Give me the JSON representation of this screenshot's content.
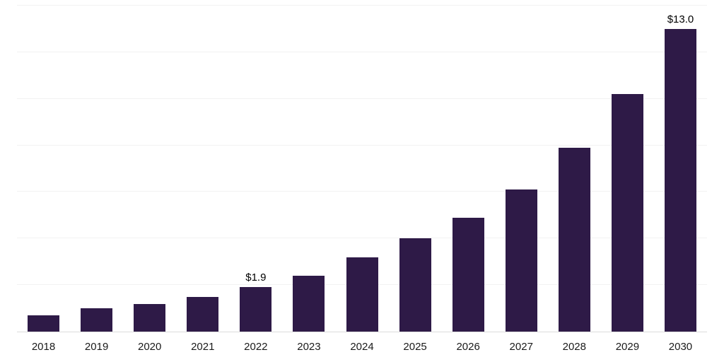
{
  "chart_data": {
    "type": "bar",
    "title": "",
    "xlabel": "",
    "ylabel": "",
    "categories": [
      "2018",
      "2019",
      "2020",
      "2021",
      "2022",
      "2023",
      "2024",
      "2025",
      "2026",
      "2027",
      "2028",
      "2029",
      "2030"
    ],
    "values": [
      0.7,
      1.0,
      1.2,
      1.5,
      1.9,
      2.4,
      3.2,
      4.0,
      4.9,
      6.1,
      7.9,
      10.2,
      13.0
    ],
    "data_labels": [
      "",
      "",
      "",
      "",
      "$1.9",
      "",
      "",
      "",
      "",
      "",
      "",
      "",
      "$13.0"
    ],
    "ylim": [
      0,
      14
    ],
    "gridline_interval": 2,
    "grid": "on",
    "legend": "none",
    "colors": {
      "bar": "#2e1a47",
      "gridline": "#f2f2f2",
      "baseline": "#dcdcdc",
      "axis_label": "#1a1a1a",
      "data_label": "#000000",
      "background": "#ffffff"
    }
  }
}
